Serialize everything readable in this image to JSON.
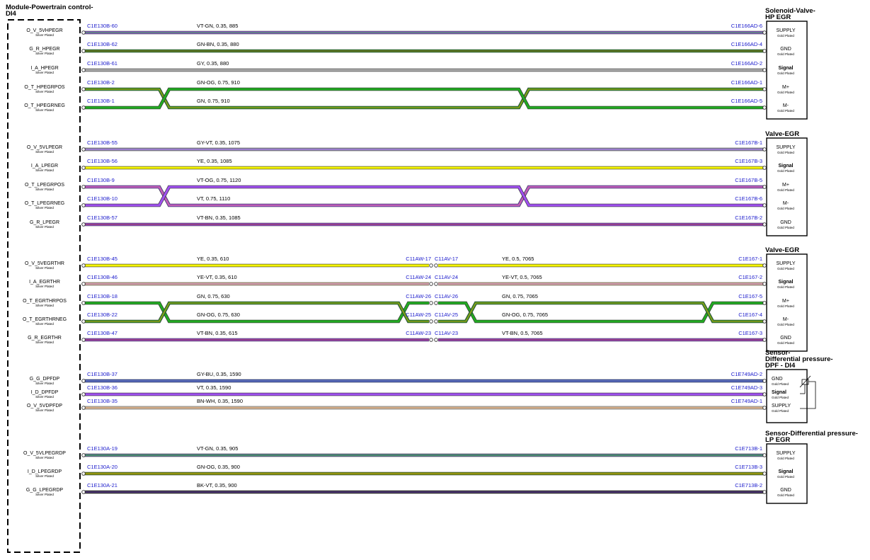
{
  "module": {
    "title": [
      "Module-Powertrain control-",
      "DI4"
    ]
  },
  "groups": [
    {
      "title": [
        "Solenoid-Valve-",
        "HP EGR"
      ],
      "wires": [
        {
          "pin": "O_V_5VHPEGR",
          "pin_plating": "Silver Plated",
          "from": "C1E130B-60",
          "spec": "VT-GN, 0.35, 885",
          "to": "C1E166AD-6",
          "right_pin": "SUPPLY",
          "right_plating": "Gold Plated",
          "colors": [
            "#9a5ce8",
            "#2ca02c"
          ]
        },
        {
          "pin": "G_R_HPEGR",
          "pin_plating": "Silver Plated",
          "from": "C1E130B-62",
          "spec": "GN-BN, 0.35, 880",
          "to": "C1E166AD-4",
          "right_pin": "GND",
          "right_plating": "Gold Plated",
          "colors": [
            "#2aa02a",
            "#9a3a1a"
          ]
        },
        {
          "pin": "I_A_HPEGR",
          "pin_plating": "Silver Plated",
          "from": "C1E130B-61",
          "spec": "GY, 0.35, 880",
          "to": "C1E166AD-2",
          "right_pin": "Signal",
          "right_plating": "Gold Plated",
          "colors": [
            "#aaaaaa",
            "#aaaaaa"
          ]
        },
        {
          "pin": "O_T_HPEGRPOS",
          "pin_plating": "Silver Plated",
          "from": "C1E130B-2",
          "spec": "GN-OG, 0.75, 910",
          "to": "C1E166AD-1",
          "right_pin": "M+",
          "right_plating": "Gold Plated",
          "colors": [
            "#2aa02a",
            "#c08a10"
          ]
        },
        {
          "pin": "O_T_HPEGRNEG",
          "pin_plating": "Silver Plated",
          "from": "C1E130B-1",
          "spec": "GN, 0.75, 910",
          "to": "C1E166AD-5",
          "right_pin": "M-",
          "right_plating": "Gold Plated",
          "colors": [
            "#22aa22",
            "#22aa22"
          ]
        }
      ]
    },
    {
      "title": [
        "Valve-EGR"
      ],
      "wires": [
        {
          "pin": "O_V_5VLPEGR",
          "pin_plating": "Silver Plated",
          "from": "C1E130B-55",
          "spec": "GY-VT, 0.35, 1075",
          "to": "C1E167B-1",
          "right_pin": "SUPPLY",
          "right_plating": "Gold Plated",
          "colors": [
            "#a0a0b8",
            "#9a5ce8"
          ]
        },
        {
          "pin": "I_A_LPEGR",
          "pin_plating": "Silver Plated",
          "from": "C1E130B-56",
          "spec": "YE, 0.35, 1085",
          "to": "C1E167B-3",
          "right_pin": "Signal",
          "right_plating": "Gold Plated",
          "colors": [
            "#f5f500",
            "#f5f500"
          ]
        },
        {
          "pin": "O_T_LPEGRPOS",
          "pin_plating": "Silver Plated",
          "from": "C1E130B-9",
          "spec": "VT-OG, 0.75, 1120",
          "to": "C1E167B-5",
          "right_pin": "M+",
          "right_plating": "Gold Plated",
          "colors": [
            "#a050f0",
            "#e07070"
          ]
        },
        {
          "pin": "O_T_LPEGRNEG",
          "pin_plating": "Silver Plated",
          "from": "C1E130B-10",
          "spec": "VT, 0.75, 1110",
          "to": "C1E167B-6",
          "right_pin": "M-",
          "right_plating": "Gold Plated",
          "colors": [
            "#a050f0",
            "#a050f0"
          ]
        },
        {
          "pin": "G_R_LPEGR",
          "pin_plating": "Silver Plated",
          "from": "C1E130B-57",
          "spec": "VT-BN, 0.35, 1085",
          "to": "C1E167B-2",
          "right_pin": "GND",
          "right_plating": "Gold Plated",
          "colors": [
            "#a050f0",
            "#8a3020"
          ]
        }
      ]
    },
    {
      "title": [
        "Valve-EGR"
      ],
      "wires": [
        {
          "pin": "O_V_5VEGRTHR",
          "pin_plating": "Silver Plated",
          "from": "C1E130B-45",
          "spec": "YE, 0.35, 610",
          "inline_from": "C11AW-17",
          "inline_to": "C11AV-17",
          "spec2": "YE, 0.5, 7065",
          "to": "C1E167-1",
          "right_pin": "SUPPLY",
          "right_plating": "Gold Plated",
          "colors": [
            "#f5f500",
            "#f5f500"
          ]
        },
        {
          "pin": "I_A_EGRTHR",
          "pin_plating": "Silver Plated",
          "from": "C1E130B-46",
          "spec": "YE-VT, 0.35, 610",
          "inline_from": "C11AW-24",
          "inline_to": "C11AV-24",
          "spec2": "YE-VT, 0.5, 7065",
          "to": "C1E167-2",
          "right_pin": "Signal",
          "right_plating": "Gold Plated",
          "colors": [
            "#e8c090",
            "#b070d0"
          ]
        },
        {
          "pin": "O_T_EGRTHRPOS",
          "pin_plating": "Silver Plated",
          "from": "C1E130B-18",
          "spec": "GN, 0.75, 630",
          "inline_from": "C11AW-26",
          "inline_to": "C11AV-26",
          "spec2": "GN, 0.75, 7065",
          "to": "C1E167-5",
          "right_pin": "M+",
          "right_plating": "Gold Plated",
          "colors": [
            "#22aa22",
            "#22aa22"
          ]
        },
        {
          "pin": "O_T_EGRTHRNEG",
          "pin_plating": "Silver Plated",
          "from": "C1E130B-22",
          "spec": "GN-OG, 0.75, 630",
          "inline_from": "C11AW-25",
          "inline_to": "C11AV-25",
          "spec2": "GN-OG, 0.75, 7065",
          "to": "C1E167-4",
          "right_pin": "M-",
          "right_plating": "Gold Plated",
          "colors": [
            "#2aa02a",
            "#c08a10"
          ]
        },
        {
          "pin": "G_R_EGRTHR",
          "pin_plating": "Silver Plated",
          "from": "C1E130B-47",
          "spec": "VT-BN, 0.35, 615",
          "inline_from": "C11AW-23",
          "inline_to": "C11AV-23",
          "spec2": "VT-BN, 0.5, 7065",
          "to": "C1E167-3",
          "right_pin": "GND",
          "right_plating": "Gold Plated",
          "colors": [
            "#a050f0",
            "#8a3020"
          ]
        }
      ]
    },
    {
      "title": [
        "Sensor-",
        "Differential pressure-",
        "DPF - DI4"
      ],
      "wires": [
        {
          "pin": "G_G_DPFDP",
          "pin_plating": "Silver Plated",
          "from": "C1E130B-37",
          "spec": "GY-BU, 0.35, 1590",
          "to": "C1E749AD-2",
          "right_pin": "GND",
          "right_plating": "Gold Plated",
          "colors": [
            "#3050d0",
            "#9090a0"
          ]
        },
        {
          "pin": "I_D_DPFDP",
          "pin_plating": "Silver Plated",
          "from": "C1E130B-36",
          "spec": "VT, 0.35, 1590",
          "to": "C1E749AD-3",
          "right_pin": "Signal",
          "right_plating": "Gold Plated",
          "colors": [
            "#a050f0",
            "#a050f0"
          ]
        },
        {
          "pin": "O_V_5VDPFDP",
          "pin_plating": "Silver Plated",
          "from": "C1E130B-35",
          "spec": "BN-WH, 0.35, 1590",
          "to": "C1E749AD-1",
          "right_pin": "SUPPLY",
          "right_plating": "Gold Plated",
          "colors": [
            "#f0e0c8",
            "#b07040"
          ]
        }
      ]
    },
    {
      "title": [
        "Sensor-Differential pressure-",
        "LP EGR"
      ],
      "wires": [
        {
          "pin": "O_V_5VLPEGRDP",
          "pin_plating": "Silver Plated",
          "from": "C1E130A-19",
          "spec": "VT-GN, 0.35, 905",
          "to": "C1E713B-1",
          "right_pin": "SUPPLY",
          "right_plating": "Gold Plated",
          "colors": [
            "#6a7ab0",
            "#2ca02c"
          ]
        },
        {
          "pin": "I_D_LPEGRDP",
          "pin_plating": "Silver Plated",
          "from": "C1E130A-20",
          "spec": "GN-OG, 0.35, 900",
          "to": "C1E713B-3",
          "right_pin": "Signal",
          "right_plating": "Gold Plated",
          "colors": [
            "#6a9a10",
            "#c08a10"
          ]
        },
        {
          "pin": "G_G_LPEGRDP",
          "pin_plating": "Silver Plated",
          "from": "C1E130A-21",
          "spec": "BK-VT, 0.35, 900",
          "to": "C1E713B-2",
          "right_pin": "GND",
          "right_plating": "Gold Plated",
          "colors": [
            "#202020",
            "#8050d0"
          ]
        }
      ]
    }
  ]
}
